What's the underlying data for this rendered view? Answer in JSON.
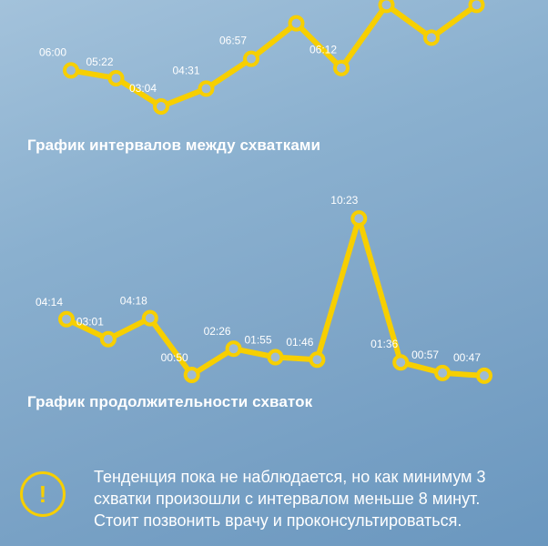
{
  "charts": {
    "intervals": {
      "title": "График интервалов между схватками",
      "values": [
        "06:00",
        "05:22",
        "03:04",
        "04:31",
        "06:57",
        "",
        "06:12",
        "",
        "",
        ""
      ],
      "seconds": [
        360,
        322,
        184,
        271,
        417,
        590,
        372,
        680,
        520,
        680
      ]
    },
    "durations": {
      "title": "График продолжительности схваток",
      "values": [
        "04:14",
        "03:01",
        "04:18",
        "00:50",
        "02:26",
        "01:55",
        "01:46",
        "10:23",
        "01:36",
        "00:57",
        "00:47"
      ],
      "seconds": [
        254,
        181,
        258,
        50,
        146,
        115,
        106,
        623,
        96,
        57,
        47
      ]
    }
  },
  "alert": {
    "icon": "exclamation-icon",
    "icon_glyph": "!",
    "text": "Тенденция пока не наблюдается, но как минимум 3 схватки произошли с интервалом меньше 8 минут. Стоит позвонить врачу и проконсультироваться."
  },
  "colors": {
    "accent": "#f7cf00",
    "text": "#ffffff"
  },
  "chart_data": [
    {
      "type": "line",
      "title": "График интервалов между схватками",
      "x": [
        1,
        2,
        3,
        4,
        5,
        6,
        7,
        8,
        9,
        10
      ],
      "series": [
        {
          "values": [
            360,
            322,
            184,
            271,
            417,
            590,
            372,
            680,
            520,
            680
          ]
        }
      ],
      "point_labels": [
        "06:00",
        "05:22",
        "03:04",
        "04:31",
        "06:57",
        "",
        "06:12",
        "",
        "",
        ""
      ],
      "grid": false
    },
    {
      "type": "line",
      "title": "График продолжительности схваток",
      "x": [
        1,
        2,
        3,
        4,
        5,
        6,
        7,
        8,
        9,
        10,
        11
      ],
      "series": [
        {
          "values": [
            254,
            181,
            258,
            50,
            146,
            115,
            106,
            623,
            96,
            57,
            47
          ]
        }
      ],
      "point_labels": [
        "04:14",
        "03:01",
        "04:18",
        "00:50",
        "02:26",
        "01:55",
        "01:46",
        "10:23",
        "01:36",
        "00:57",
        "00:47"
      ],
      "grid": false
    }
  ]
}
